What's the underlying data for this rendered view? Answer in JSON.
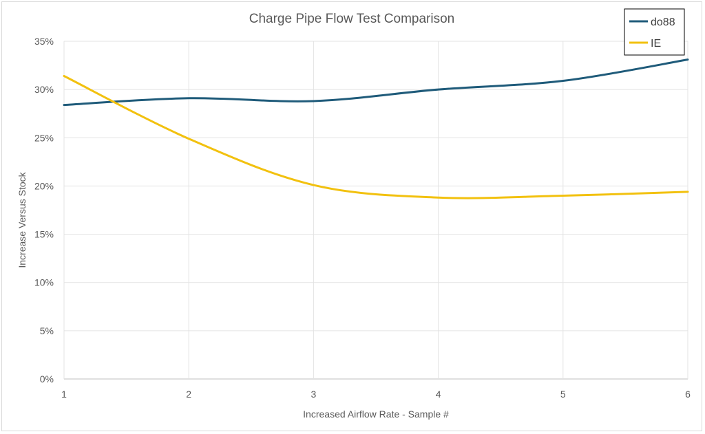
{
  "chart_data": {
    "type": "line",
    "title": "Charge Pipe Flow Test Comparison",
    "xlabel": "Increased Airflow Rate - Sample #",
    "ylabel": "Increase Versus Stock",
    "x": [
      1,
      2,
      3,
      4,
      5,
      6
    ],
    "x_tick_labels": [
      "1",
      "2",
      "3",
      "4",
      "5",
      "6"
    ],
    "y_tick_labels": [
      "0%",
      "5%",
      "10%",
      "15%",
      "20%",
      "25%",
      "30%",
      "35%"
    ],
    "ylim": [
      0,
      35
    ],
    "y_unit": "%",
    "grid": "vertical and horizontal",
    "legend_position": "top-right",
    "smooth": true,
    "series": [
      {
        "name": "do88",
        "color": "#1f5b7a",
        "values": [
          28.4,
          29.1,
          28.8,
          30.0,
          30.9,
          33.1
        ]
      },
      {
        "name": "IE",
        "color": "#f2c10f",
        "values": [
          31.4,
          24.9,
          20.1,
          18.8,
          19.0,
          19.4
        ]
      }
    ]
  }
}
